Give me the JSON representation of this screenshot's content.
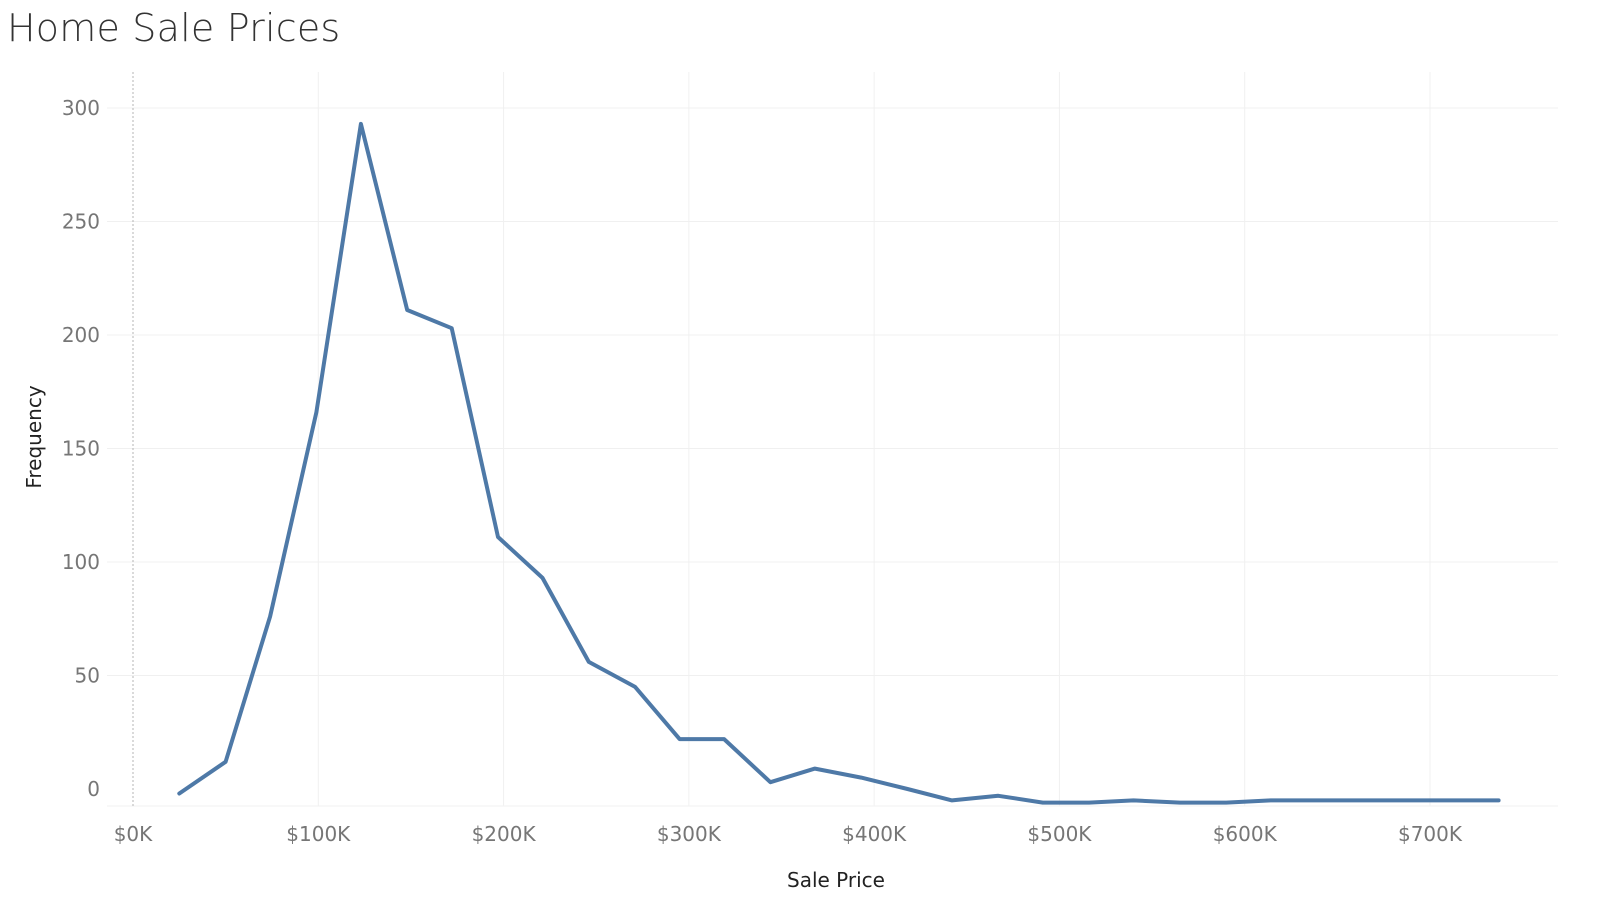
{
  "title": "Home Sale Prices",
  "chart_data": {
    "type": "line",
    "title": "Home Sale Prices",
    "xlabel": "Sale Price",
    "ylabel": "Frequency",
    "xlim": [
      0,
      760000
    ],
    "ylim": [
      -7,
      315
    ],
    "x_ticks": [
      0,
      100000,
      200000,
      300000,
      400000,
      500000,
      600000,
      700000
    ],
    "x_tick_labels": [
      "$0K",
      "$100K",
      "$200K",
      "$300K",
      "$400K",
      "$500K",
      "$600K",
      "$700K"
    ],
    "y_ticks": [
      0,
      50,
      100,
      150,
      200,
      250,
      300
    ],
    "y_tick_labels": [
      "0",
      "50",
      "100",
      "150",
      "200",
      "250",
      "300"
    ],
    "grid": true,
    "color": "#4e79a7",
    "series": [
      {
        "x": [
          25000,
          50000,
          74000,
          99000,
          123000,
          148000,
          172000,
          197000,
          221000,
          246000,
          271000,
          295000,
          319000,
          344000,
          368000,
          393000,
          418000,
          442000,
          467000,
          491000,
          516000,
          540000,
          565000,
          590000,
          614000,
          639000,
          664000,
          688000,
          713000,
          737000
        ],
        "values": [
          -2,
          12,
          76,
          166,
          293,
          211,
          203,
          111,
          93,
          56,
          45,
          22,
          22,
          3,
          9,
          5,
          0,
          -5,
          -3,
          -6,
          -6,
          -5,
          -6,
          -6,
          -5,
          -5,
          -5,
          -5,
          -5,
          -5
        ]
      }
    ]
  }
}
